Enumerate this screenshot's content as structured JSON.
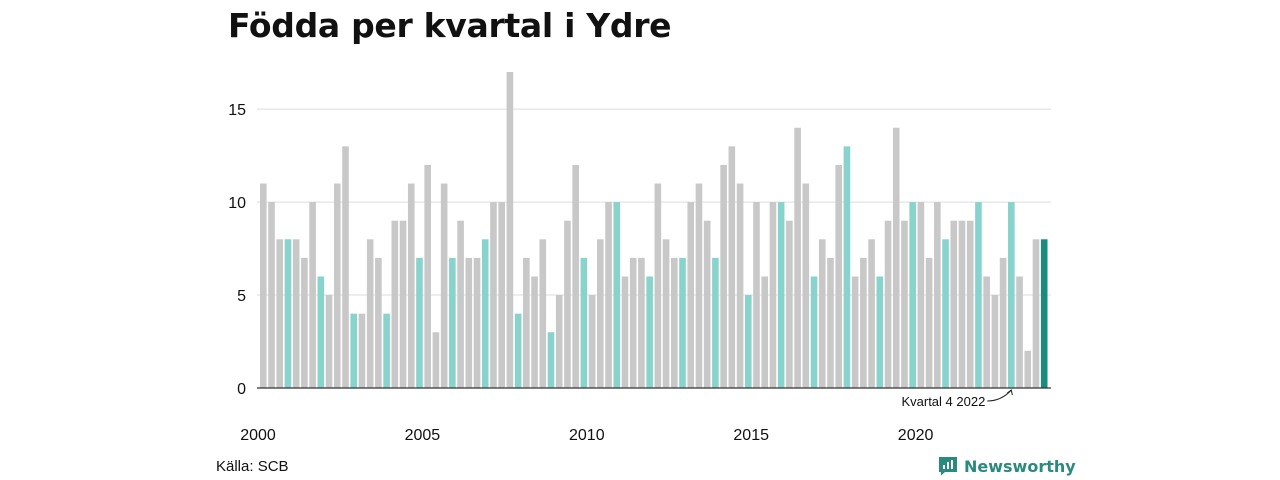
{
  "title": "Födda per kvartal i Ydre",
  "source": "Källa: SCB",
  "brand": {
    "name": "Newsworthy",
    "icon": "newsworthy-logo-icon"
  },
  "colors": {
    "bar": "#c8c8c8",
    "highlight": "#88d4cc",
    "latest": "#1a8b7e",
    "grid": "#dddddd",
    "axis": "#333333"
  },
  "chart_data": {
    "type": "bar",
    "title": "Födda per kvartal i Ydre",
    "xlabel": "",
    "ylabel": "",
    "ylim": [
      0,
      17
    ],
    "yticks": [
      0,
      5,
      10,
      15
    ],
    "xtick_labels": [
      "2000",
      "2005",
      "2010",
      "2015",
      "2020"
    ],
    "grid": true,
    "start_year": 2000,
    "highlight_quarter": 4,
    "annotation": {
      "text": "Kvartal 4 2022",
      "year": 2022,
      "quarter": 4
    },
    "series": [
      {
        "values": [
          11,
          10,
          8,
          8,
          8,
          7,
          10,
          6,
          5,
          11,
          13,
          4,
          4,
          8,
          7,
          4,
          9,
          9,
          11,
          7,
          12,
          3,
          11,
          7,
          9,
          7,
          7,
          8,
          10,
          10,
          17,
          4,
          7,
          6,
          8,
          3,
          5,
          9,
          12,
          7,
          5,
          8,
          10,
          10,
          6,
          7,
          7,
          6,
          11,
          8,
          7,
          7,
          10,
          11,
          9,
          7,
          12,
          13,
          11,
          5,
          10,
          6,
          10,
          10,
          9,
          14,
          11,
          6,
          8,
          7,
          12,
          13,
          6,
          7,
          8,
          6,
          9,
          14,
          9,
          10,
          10,
          7,
          10,
          8,
          9,
          9,
          9,
          10,
          6,
          5,
          7,
          10,
          6,
          2,
          8,
          8
        ]
      }
    ]
  }
}
